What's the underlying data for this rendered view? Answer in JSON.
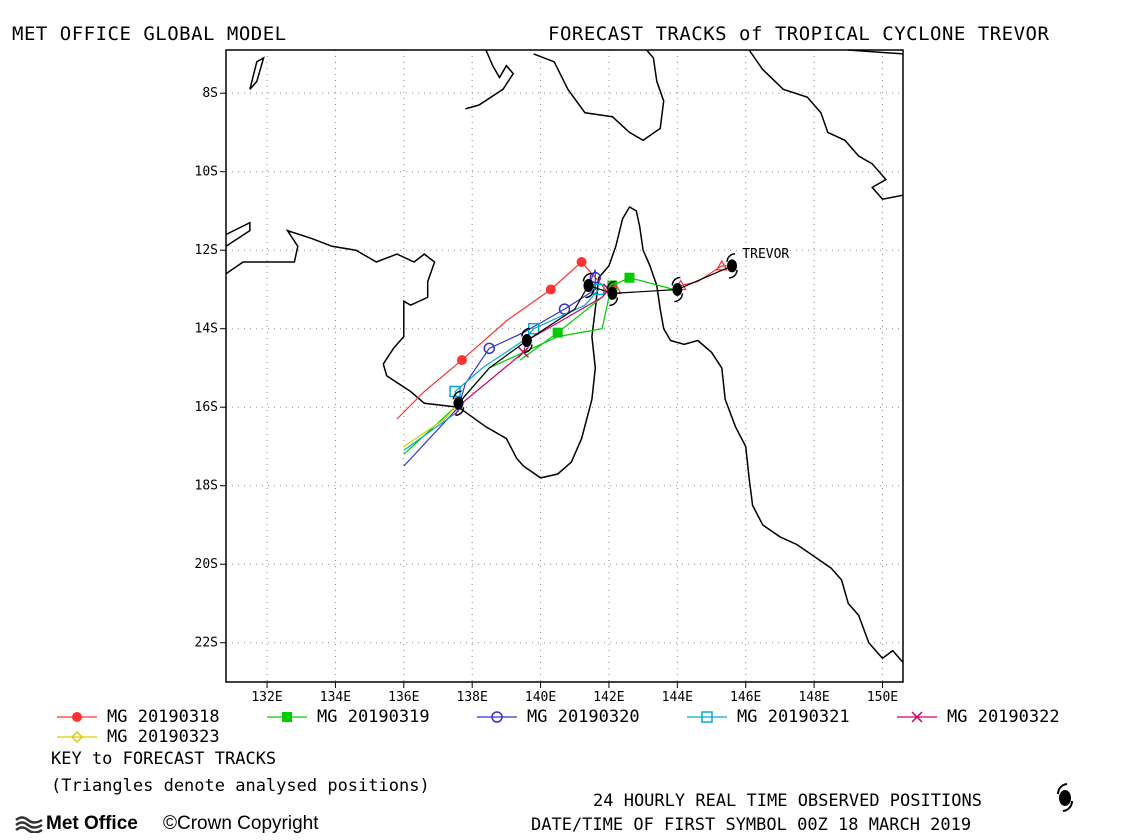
{
  "header": {
    "left": "MET OFFICE GLOBAL MODEL",
    "right": "FORECAST TRACKS of TROPICAL CYCLONE TREVOR"
  },
  "map": {
    "lon_range": [
      130.8,
      150.6
    ],
    "lat_range": [
      -23.0,
      -6.9
    ],
    "lat_ticks": [
      {
        "value": -8,
        "label": "8S"
      },
      {
        "value": -10,
        "label": "10S"
      },
      {
        "value": -12,
        "label": "12S"
      },
      {
        "value": -14,
        "label": "14S"
      },
      {
        "value": -16,
        "label": "16S"
      },
      {
        "value": -18,
        "label": "18S"
      },
      {
        "value": -20,
        "label": "20S"
      },
      {
        "value": -22,
        "label": "22S"
      }
    ],
    "lon_ticks": [
      {
        "value": 132,
        "label": "132E"
      },
      {
        "value": 134,
        "label": "134E"
      },
      {
        "value": 136,
        "label": "136E"
      },
      {
        "value": 138,
        "label": "138E"
      },
      {
        "value": 140,
        "label": "140E"
      },
      {
        "value": 142,
        "label": "142E"
      },
      {
        "value": 144,
        "label": "144E"
      },
      {
        "value": 146,
        "label": "146E"
      },
      {
        "value": 148,
        "label": "148E"
      },
      {
        "value": 150,
        "label": "150E"
      }
    ],
    "grid": true,
    "storm_label": "TREVOR",
    "storm_label_pos": [
      145.9,
      -12.1
    ],
    "coastlines": [
      [
        [
          130.8,
          -11.6
        ],
        [
          131.5,
          -11.3
        ],
        [
          131.5,
          -11.5
        ],
        [
          130.8,
          -11.9
        ]
      ],
      [
        [
          130.8,
          -12.6
        ],
        [
          131.3,
          -12.3
        ],
        [
          132.8,
          -12.3
        ],
        [
          132.9,
          -11.9
        ],
        [
          132.6,
          -11.5
        ],
        [
          133.3,
          -11.7
        ],
        [
          133.9,
          -11.9
        ],
        [
          134.6,
          -12.0
        ],
        [
          135.2,
          -12.3
        ],
        [
          135.8,
          -12.1
        ],
        [
          136.3,
          -12.3
        ],
        [
          136.6,
          -12.1
        ],
        [
          136.9,
          -12.3
        ],
        [
          136.7,
          -12.8
        ],
        [
          136.7,
          -13.2
        ],
        [
          136.2,
          -13.4
        ],
        [
          136.0,
          -13.3
        ],
        [
          136.0,
          -14.2
        ],
        [
          135.7,
          -14.5
        ],
        [
          135.4,
          -14.9
        ],
        [
          135.5,
          -15.2
        ],
        [
          136.2,
          -15.6
        ],
        [
          136.6,
          -15.9
        ],
        [
          137.6,
          -16.0
        ],
        [
          138.4,
          -16.5
        ],
        [
          139.0,
          -16.8
        ],
        [
          139.3,
          -17.3
        ],
        [
          139.5,
          -17.5
        ],
        [
          140.0,
          -17.8
        ],
        [
          140.5,
          -17.7
        ],
        [
          140.9,
          -17.4
        ],
        [
          141.2,
          -16.8
        ],
        [
          141.5,
          -15.8
        ],
        [
          141.6,
          -15.0
        ],
        [
          141.5,
          -14.2
        ],
        [
          141.6,
          -13.5
        ],
        [
          141.7,
          -12.7
        ],
        [
          142.0,
          -12.4
        ],
        [
          142.2,
          -11.9
        ],
        [
          142.4,
          -11.2
        ],
        [
          142.6,
          -10.9
        ],
        [
          142.8,
          -11.0
        ],
        [
          142.9,
          -11.4
        ],
        [
          143.0,
          -12.0
        ],
        [
          143.2,
          -12.4
        ],
        [
          143.4,
          -12.9
        ],
        [
          143.5,
          -13.5
        ],
        [
          143.6,
          -14.0
        ],
        [
          143.8,
          -14.3
        ],
        [
          144.2,
          -14.4
        ],
        [
          144.6,
          -14.3
        ],
        [
          145.0,
          -14.6
        ],
        [
          145.3,
          -15.0
        ],
        [
          145.4,
          -15.8
        ],
        [
          145.7,
          -16.5
        ],
        [
          146.0,
          -17.0
        ],
        [
          146.1,
          -17.8
        ],
        [
          146.2,
          -18.5
        ],
        [
          146.5,
          -19.0
        ],
        [
          147.0,
          -19.3
        ],
        [
          147.5,
          -19.5
        ],
        [
          148.0,
          -19.8
        ],
        [
          148.5,
          -20.1
        ],
        [
          148.8,
          -20.4
        ],
        [
          149.0,
          -21.0
        ],
        [
          149.3,
          -21.3
        ],
        [
          149.6,
          -22.0
        ],
        [
          150.0,
          -22.4
        ],
        [
          150.3,
          -22.2
        ],
        [
          150.6,
          -22.5
        ]
      ],
      [
        [
          137.8,
          -8.4
        ],
        [
          138.2,
          -8.3
        ],
        [
          138.9,
          -7.9
        ],
        [
          139.2,
          -7.5
        ],
        [
          139.0,
          -7.3
        ],
        [
          138.8,
          -7.6
        ],
        [
          138.6,
          -7.3
        ],
        [
          138.4,
          -6.9
        ]
      ],
      [
        [
          139.8,
          -7.0
        ],
        [
          140.4,
          -7.2
        ],
        [
          140.8,
          -7.9
        ],
        [
          141.3,
          -8.5
        ],
        [
          142.1,
          -8.6
        ],
        [
          142.6,
          -9.0
        ],
        [
          143.0,
          -9.2
        ],
        [
          143.5,
          -8.9
        ],
        [
          143.6,
          -8.2
        ],
        [
          143.4,
          -7.7
        ],
        [
          143.3,
          -7.1
        ],
        [
          143.1,
          -6.9
        ]
      ],
      [
        [
          149.0,
          -6.9
        ],
        [
          150.6,
          -7.0
        ]
      ]
    ],
    "islands": [
      [
        [
          131.5,
          -7.9
        ],
        [
          131.7,
          -7.2
        ],
        [
          131.9,
          -7.1
        ],
        [
          131.7,
          -7.7
        ]
      ]
    ],
    "png_coast": [
      [
        146.1,
        -6.9
      ],
      [
        146.5,
        -7.4
      ],
      [
        147.1,
        -7.9
      ],
      [
        147.8,
        -8.1
      ],
      [
        148.2,
        -8.5
      ],
      [
        148.4,
        -9.0
      ],
      [
        148.9,
        -9.2
      ],
      [
        149.3,
        -9.6
      ],
      [
        149.7,
        -9.8
      ],
      [
        150.1,
        -10.2
      ],
      [
        149.7,
        -10.4
      ],
      [
        150.0,
        -10.7
      ],
      [
        150.6,
        -10.6
      ]
    ],
    "tracks": [
      {
        "name": "MG 20190318",
        "color": "#ff3333",
        "marker": "circle-filled",
        "points": [
          [
            141.2,
            -12.3
          ],
          [
            140.3,
            -13.0
          ],
          [
            137.7,
            -14.8
          ]
        ],
        "line": [
          [
            142.0,
            -13.1
          ],
          [
            141.2,
            -12.3
          ],
          [
            140.3,
            -13.0
          ],
          [
            139.0,
            -13.8
          ],
          [
            137.7,
            -14.8
          ],
          [
            136.6,
            -15.6
          ],
          [
            135.8,
            -16.3
          ]
        ]
      },
      {
        "name": "MG 20190319",
        "color": "#00cc00",
        "marker": "square-filled",
        "points": [
          [
            142.1,
            -12.9
          ],
          [
            142.6,
            -12.7
          ],
          [
            140.5,
            -14.1
          ]
        ],
        "line": [
          [
            143.9,
            -13.0
          ],
          [
            142.6,
            -12.7
          ],
          [
            142.1,
            -12.9
          ],
          [
            141.8,
            -13.2
          ],
          [
            140.5,
            -14.1
          ],
          [
            139.4,
            -14.8
          ]
        ],
        "line2": [
          [
            142.0,
            -13.2
          ],
          [
            141.8,
            -14.0
          ],
          [
            140.5,
            -14.2
          ],
          [
            138.5,
            -15.0
          ],
          [
            137.5,
            -16.0
          ],
          [
            136.0,
            -17.2
          ]
        ]
      },
      {
        "name": "MG 20190320",
        "color": "#3333cc",
        "marker": "circle-open",
        "points": [
          [
            140.7,
            -13.5
          ],
          [
            138.5,
            -14.5
          ],
          [
            141.6,
            -12.7
          ]
        ],
        "line": [
          [
            141.4,
            -12.9
          ],
          [
            141.6,
            -12.5
          ],
          [
            141.6,
            -13.0
          ],
          [
            140.7,
            -13.5
          ],
          [
            139.5,
            -14.1
          ],
          [
            138.5,
            -14.5
          ],
          [
            137.8,
            -15.4
          ],
          [
            137.6,
            -16.0
          ],
          [
            136.0,
            -17.5
          ]
        ]
      },
      {
        "name": "MG 20190321",
        "color": "#00aacc",
        "marker": "square-open",
        "points": [
          [
            139.8,
            -14.0
          ],
          [
            141.7,
            -13.0
          ],
          [
            137.5,
            -15.6
          ]
        ],
        "line": [
          [
            141.7,
            -13.0
          ],
          [
            141.3,
            -13.4
          ],
          [
            139.8,
            -14.0
          ],
          [
            139.5,
            -14.3
          ],
          [
            138.3,
            -15.0
          ],
          [
            137.5,
            -15.6
          ],
          [
            137.6,
            -16.1
          ],
          [
            136.0,
            -17.1
          ]
        ]
      },
      {
        "name": "MG 20190322",
        "color": "#cc0066",
        "marker": "cross",
        "points": [
          [
            142.0,
            -13.0
          ],
          [
            139.5,
            -14.6
          ]
        ],
        "line": [
          [
            142.0,
            -13.0
          ],
          [
            141.8,
            -13.2
          ],
          [
            139.6,
            -14.3
          ],
          [
            139.5,
            -14.6
          ],
          [
            137.7,
            -15.9
          ],
          [
            137.5,
            -16.2
          ]
        ]
      },
      {
        "name": "MG 20190323",
        "color": "#ddcc00",
        "marker": "diamond-open",
        "points": [
          [
            137.6,
            -15.9
          ]
        ],
        "line": [
          [
            137.6,
            -15.9
          ],
          [
            137.2,
            -16.3
          ],
          [
            136.0,
            -17.0
          ]
        ]
      }
    ],
    "analysed_triangles": [
      [
        145.3,
        -12.4
      ],
      [
        144.1,
        -12.9
      ],
      [
        142.2,
        -13.0
      ]
    ],
    "analysed_line": [
      [
        145.6,
        -12.4
      ],
      [
        145.3,
        -12.4
      ],
      [
        144.6,
        -12.8
      ],
      [
        144.1,
        -12.9
      ]
    ],
    "observed_positions": [
      [
        145.6,
        -12.4
      ],
      [
        144.0,
        -13.0
      ],
      [
        142.1,
        -13.1
      ],
      [
        141.4,
        -12.9
      ],
      [
        139.6,
        -14.3
      ],
      [
        137.6,
        -15.9
      ]
    ],
    "observed_line": [
      [
        145.6,
        -12.4
      ],
      [
        144.0,
        -13.0
      ],
      [
        142.1,
        -13.1
      ],
      [
        141.4,
        -12.9
      ],
      [
        141.0,
        -13.5
      ],
      [
        139.6,
        -14.3
      ],
      [
        138.5,
        -15.0
      ],
      [
        137.6,
        -15.9
      ]
    ]
  },
  "legend": {
    "items": [
      {
        "label": "MG 20190318",
        "color": "#ff3333",
        "marker": "circle-filled"
      },
      {
        "label": "MG 20190319",
        "color": "#00cc00",
        "marker": "square-filled"
      },
      {
        "label": "MG 20190320",
        "color": "#3333cc",
        "marker": "circle-open"
      },
      {
        "label": "MG 20190321",
        "color": "#00aacc",
        "marker": "square-open"
      },
      {
        "label": "MG 20190322",
        "color": "#cc0066",
        "marker": "cross"
      },
      {
        "label": "MG 20190323",
        "color": "#ddcc00",
        "marker": "diamond-open"
      }
    ],
    "key_title": "KEY to FORECAST TRACKS",
    "key_note": "(Triangles denote analysed positions)"
  },
  "footer": {
    "observed": "24 HOURLY REAL TIME OBSERVED POSITIONS",
    "datetime": "DATE/TIME OF FIRST SYMBOL 00Z 18 MARCH 2019",
    "logo": "Met Office",
    "copyright": "©Crown Copyright",
    "cyclone_icon": "cyclone-symbol-icon",
    "logo_icon": "met-office-waves-icon"
  }
}
